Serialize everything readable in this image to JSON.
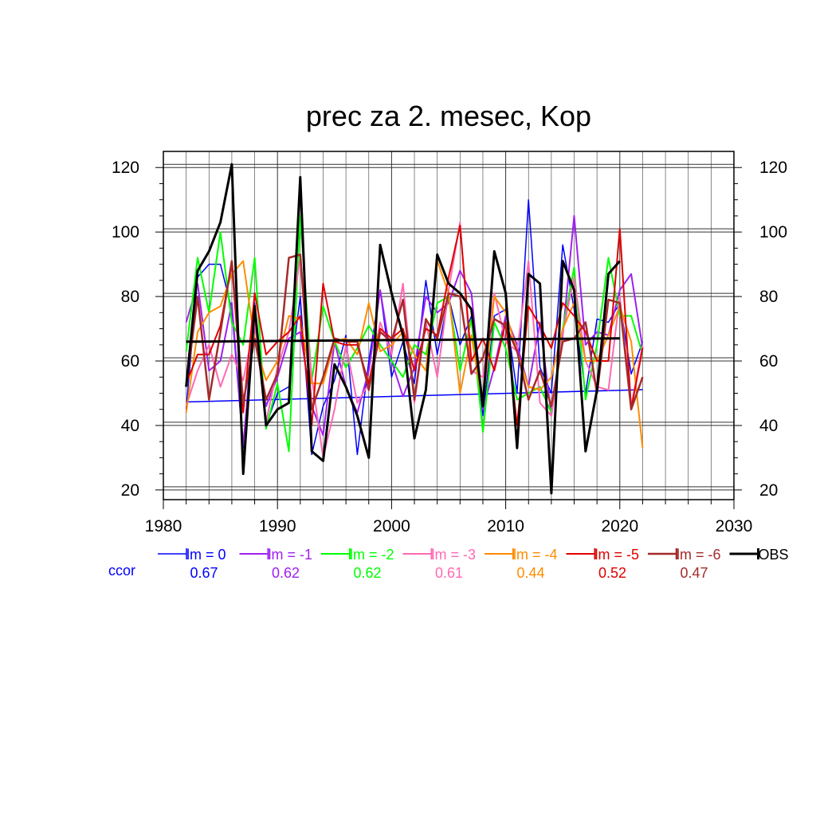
{
  "chart_data": {
    "type": "line",
    "title": "prec za 2. mesec, Kop",
    "xlabel": "",
    "ylabel": "",
    "xlim": [
      1980,
      2030
    ],
    "ylim": [
      17,
      125
    ],
    "x_ticks": [
      1980,
      1990,
      2000,
      2010,
      2020,
      2030
    ],
    "y_ticks": [
      20,
      40,
      60,
      80,
      100,
      120
    ],
    "grid": true,
    "legend_position": "bottom",
    "ccor_label": "ccor",
    "x": [
      1982,
      1983,
      1984,
      1985,
      1986,
      1987,
      1988,
      1989,
      1990,
      1991,
      1992,
      1993,
      1994,
      1995,
      1996,
      1997,
      1998,
      1999,
      2000,
      2001,
      2002,
      2003,
      2004,
      2005,
      2006,
      2007,
      2008,
      2009,
      2010,
      2011,
      2012,
      2013,
      2014,
      2015,
      2016,
      2017,
      2018,
      2019,
      2020,
      2021,
      2022
    ],
    "series": [
      {
        "name": "lm = 0",
        "color": "#0000ff",
        "ccor": "0.67",
        "width": 1.5,
        "values": [
          45,
          86,
          90,
          90,
          76,
          33,
          78,
          40,
          50,
          52,
          80,
          31,
          46,
          54,
          68,
          31,
          60,
          82,
          55,
          66,
          53,
          85,
          62,
          80,
          65,
          74,
          43,
          74,
          76,
          50,
          110,
          58,
          50,
          96,
          76,
          50,
          73,
          72,
          78,
          56,
          66
        ],
        "trend": [
          47.3,
          51.1
        ]
      },
      {
        "name": "lm = -1",
        "color": "#a020f0",
        "ccor": "0.62",
        "width": 2,
        "values": [
          72,
          84,
          57,
          60,
          78,
          34,
          72,
          46,
          55,
          67,
          69,
          46,
          37,
          66,
          52,
          44,
          57,
          82,
          60,
          49,
          58,
          80,
          75,
          78,
          88,
          81,
          45,
          58,
          74,
          65,
          52,
          72,
          43,
          68,
          105,
          65,
          69,
          68,
          82,
          87,
          64
        ]
      },
      {
        "name": "lm = -2",
        "color": "#00ff00",
        "ccor": "0.62",
        "width": 2,
        "values": [
          63,
          92,
          75,
          100,
          72,
          65,
          92,
          39,
          53,
          32,
          105,
          54,
          77,
          66,
          58,
          64,
          71,
          65,
          60,
          55,
          65,
          62,
          78,
          80,
          57,
          73,
          38,
          72,
          64,
          48,
          50,
          52,
          44,
          70,
          89,
          48,
          65,
          92,
          74,
          74,
          62
        ]
      },
      {
        "name": "lm = -3",
        "color": "#ff69b4",
        "ccor": "0.61",
        "width": 2,
        "values": [
          46,
          57,
          65,
          52,
          62,
          54,
          72,
          41,
          58,
          69,
          92,
          55,
          30,
          45,
          65,
          47,
          53,
          72,
          62,
          84,
          47,
          72,
          55,
          82,
          103,
          57,
          55,
          81,
          66,
          63,
          91,
          47,
          43,
          69,
          86,
          60,
          52,
          51,
          80,
          46,
          65
        ]
      },
      {
        "name": "lm = -4",
        "color": "#ff8c00",
        "ccor": "0.44",
        "width": 2,
        "values": [
          44,
          69,
          75,
          77,
          87,
          91,
          66,
          54,
          60,
          74,
          73,
          53,
          53,
          66,
          67,
          62,
          78,
          63,
          65,
          69,
          62,
          57,
          91,
          81,
          50,
          68,
          46,
          80,
          75,
          63,
          52,
          51,
          55,
          70,
          78,
          60,
          60,
          68,
          77,
          66,
          33
        ]
      },
      {
        "name": "lm = -5",
        "color": "#e00000",
        "ccor": "0.52",
        "width": 2,
        "values": [
          53,
          62,
          62,
          71,
          90,
          44,
          81,
          62,
          66,
          69,
          74,
          40,
          84,
          66,
          65,
          65,
          53,
          70,
          67,
          70,
          57,
          70,
          68,
          86,
          102,
          60,
          67,
          57,
          72,
          40,
          77,
          71,
          64,
          78,
          74,
          69,
          60,
          60,
          101,
          45,
          64
        ]
      },
      {
        "name": "lm = -6",
        "color": "#a52a2a",
        "ccor": "0.47",
        "width": 2.5,
        "values": [
          52,
          80,
          48,
          69,
          91,
          47,
          67,
          48,
          56,
          92,
          93,
          45,
          55,
          67,
          66,
          66,
          51,
          69,
          66,
          79,
          48,
          73,
          67,
          81,
          80,
          56,
          61,
          73,
          71,
          63,
          48,
          57,
          46,
          66,
          67,
          72,
          50,
          79,
          78,
          45,
          55
        ]
      },
      {
        "name": "OBS",
        "color": "#000000",
        "ccor": "",
        "width": 3,
        "values": [
          52,
          88,
          94,
          103,
          121,
          25,
          77,
          40,
          45,
          47,
          117,
          32,
          29,
          59,
          52,
          43,
          30,
          96,
          81,
          68,
          36,
          51,
          93,
          84,
          81,
          76,
          46,
          94,
          81,
          33,
          87,
          84,
          19,
          91,
          82,
          32,
          51,
          87,
          91,
          null,
          null
        ],
        "trend": [
          66.0,
          67.0
        ]
      }
    ]
  }
}
